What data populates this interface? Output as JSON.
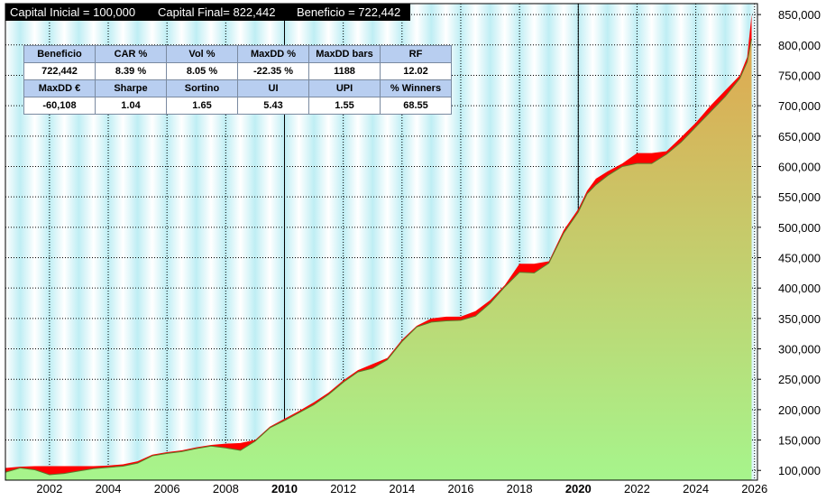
{
  "header": {
    "capital_inicial": "Capital Inicial = 100,000",
    "capital_final": "Capital Final= 822,442",
    "beneficio": "Beneficio = 722,442"
  },
  "stats_table": {
    "row1_headers": [
      "Beneficio",
      "CAR %",
      "Vol %",
      "MaxDD %",
      "MaxDD bars",
      "RF"
    ],
    "row1_values": [
      "722,442",
      "8.39 %",
      "8.05 %",
      "-22.35 %",
      "1188",
      "12.02"
    ],
    "row2_headers": [
      "MaxDD €",
      "Sharpe",
      "Sortino",
      "UI",
      "UPI",
      "% Winners"
    ],
    "row2_values": [
      "-60,108",
      "1.04",
      "1.65",
      "5.43",
      "1.55",
      "68.55"
    ]
  },
  "colors": {
    "equity_top": "#e0a850",
    "equity_bottom": "#a6f58c",
    "drawdown": "#ff0000",
    "background_band": "#bfeef4",
    "header_bg": "#000000",
    "header_text": "#ffffff",
    "table_header_bg": "#b8cef0"
  },
  "chart_data": {
    "type": "area",
    "title": "",
    "xlabel": "",
    "ylabel": "",
    "xlim": [
      2000.5,
      2026.1
    ],
    "ylim": [
      84000,
      868000
    ],
    "x_tick_labels": [
      "2002",
      "2004",
      "2006",
      "2008",
      "2010",
      "2012",
      "2014",
      "2016",
      "2018",
      "2020",
      "2022",
      "2024",
      "2026"
    ],
    "x_tick_values": [
      2002,
      2004,
      2006,
      2008,
      2010,
      2012,
      2014,
      2016,
      2018,
      2020,
      2022,
      2024,
      2026
    ],
    "bold_tick_labels": [
      "2010",
      "2020"
    ],
    "y_tick_labels": [
      "100,000",
      "150,000",
      "200,000",
      "250,000",
      "300,000",
      "350,000",
      "400,000",
      "450,000",
      "500,000",
      "550,000",
      "600,000",
      "650,000",
      "700,000",
      "750,000",
      "800,000",
      "850,000"
    ],
    "y_tick_values": [
      100000,
      150000,
      200000,
      250000,
      300000,
      350000,
      400000,
      450000,
      500000,
      550000,
      600000,
      650000,
      700000,
      750000,
      800000,
      850000
    ],
    "grid": true,
    "series": [
      {
        "x": [
          2000.5,
          2001.0,
          2001.5,
          2002.0,
          2002.5,
          2003.0,
          2003.5,
          2004.0,
          2004.5,
          2005.0,
          2005.5,
          2006.0,
          2006.5,
          2007.0,
          2007.5,
          2008.0,
          2008.5,
          2009.0,
          2009.5,
          2010.0,
          2010.5,
          2011.0,
          2011.5,
          2012.0,
          2012.5,
          2013.0,
          2013.5,
          2014.0,
          2014.5,
          2015.0,
          2015.5,
          2016.0,
          2016.5,
          2017.0,
          2017.5,
          2018.0,
          2018.5,
          2019.0,
          2019.5,
          2020.0,
          2020.3,
          2020.6,
          2021.0,
          2021.5,
          2022.0,
          2022.5,
          2023.0,
          2023.5,
          2024.0,
          2024.5,
          2025.0,
          2025.5,
          2025.75,
          2025.9
        ],
        "equity": [
          97000,
          104000,
          101000,
          93000,
          95000,
          99000,
          103000,
          105000,
          107000,
          112000,
          124000,
          128000,
          131000,
          136000,
          140000,
          137000,
          133000,
          148000,
          170000,
          182000,
          195000,
          208000,
          225000,
          245000,
          262000,
          268000,
          282000,
          312000,
          336000,
          344000,
          346000,
          347000,
          354000,
          375000,
          402000,
          426000,
          425000,
          441000,
          490000,
          525000,
          555000,
          570000,
          585000,
          600000,
          605000,
          605000,
          620000,
          640000,
          665000,
          690000,
          715000,
          745000,
          772000,
          810000
        ],
        "peak": [
          104000,
          106000,
          107000,
          107000,
          107000,
          107000,
          107000,
          108000,
          110000,
          115000,
          126000,
          130000,
          133000,
          138000,
          142000,
          144000,
          145000,
          150000,
          172000,
          185000,
          198000,
          212000,
          228000,
          248000,
          265000,
          275000,
          285000,
          315000,
          338000,
          350000,
          353000,
          353000,
          362000,
          380000,
          405000,
          440000,
          440000,
          444000,
          495000,
          530000,
          560000,
          580000,
          592000,
          605000,
          622000,
          622000,
          625000,
          648000,
          672000,
          700000,
          725000,
          750000,
          780000,
          850000
        ]
      }
    ]
  }
}
